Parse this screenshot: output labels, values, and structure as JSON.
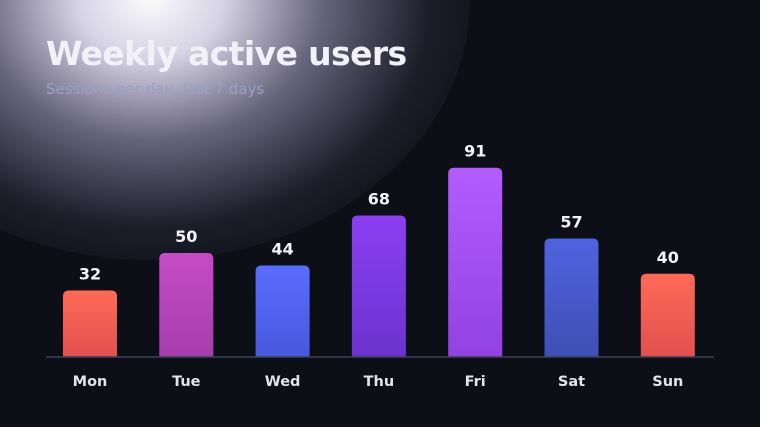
{
  "header": {
    "title": "Weekly active users",
    "subtitle": "Sessions per day, last 7 days"
  },
  "colors": {
    "background": "#0d0f17",
    "baseline": "#3c4156",
    "bar_coral": [
      "#ff6a57",
      "#e2504f"
    ],
    "bar_magenta": [
      "#c64bc6",
      "#a63dac"
    ],
    "bar_blue": [
      "#5b6cff",
      "#4758dd"
    ],
    "bar_violet": [
      "#8b3ff2",
      "#6a33cf"
    ],
    "bar_purple": [
      "#b35cff",
      "#9142e0"
    ],
    "bar_indigo": [
      "#4f63e0",
      "#3f4fb4"
    ]
  },
  "chart_data": {
    "type": "bar",
    "title": "Weekly active users",
    "subtitle": "Sessions per day, last 7 days",
    "categories": [
      "Mon",
      "Tue",
      "Wed",
      "Thu",
      "Fri",
      "Sat",
      "Sun"
    ],
    "values": [
      32,
      50,
      44,
      68,
      91,
      57,
      40
    ],
    "bar_colors": [
      "bar_coral",
      "bar_magenta",
      "bar_blue",
      "bar_violet",
      "bar_purple",
      "bar_indigo",
      "bar_coral"
    ],
    "data_labels": true,
    "ylim": [
      0,
      91
    ],
    "grid": false,
    "legend": "none"
  }
}
